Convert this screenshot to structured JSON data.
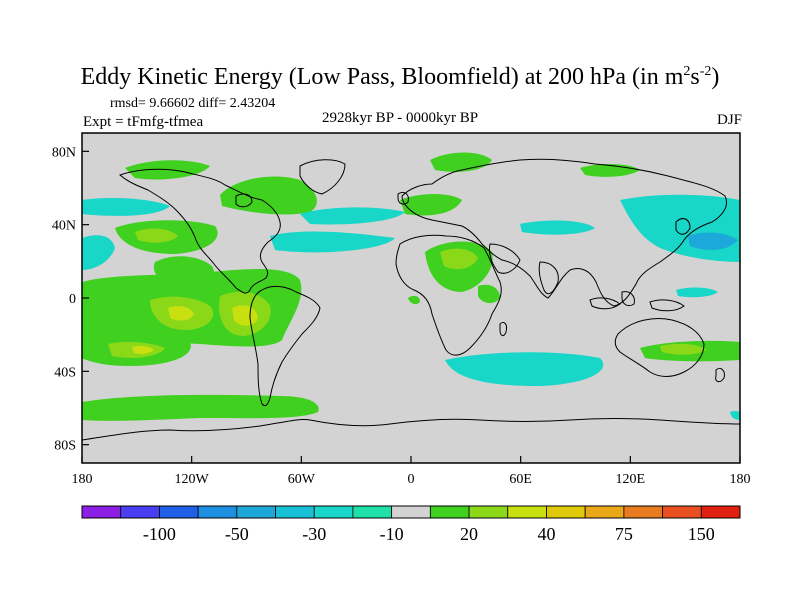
{
  "title": {
    "main": "Eddy Kinetic Energy (Low Pass, Bloomfield) at 200 hPa (in m",
    "sup1": "2",
    "mid": "s",
    "sup2": "-2",
    "close": ")"
  },
  "stats": {
    "rmsd_text": "rmsd= 9.66602 diff= 2.43204"
  },
  "expt_text": "Expt = tFmfg-tfmea",
  "period_text": "2928kyr BP - 0000kyr BP",
  "season_text": "DJF",
  "map": {
    "lat_ticks": [
      "80N",
      "40N",
      "0",
      "40S",
      "80S"
    ],
    "lon_ticks": [
      "180",
      "120W",
      "60W",
      "0",
      "60E",
      "120E",
      "180"
    ],
    "background_color": "#d3d3d3",
    "coastline_color": "#000000"
  },
  "colorbar": {
    "colors": [
      "#8c1fe6",
      "#4a3ff0",
      "#2060e8",
      "#1d8fe0",
      "#1ca8d8",
      "#18c0d6",
      "#18d6c8",
      "#20e0a8",
      "#d3d3d3",
      "#40d020",
      "#8ad818",
      "#c8e010",
      "#e0c80a",
      "#e8a818",
      "#e87a20",
      "#e85020",
      "#e02010"
    ],
    "labels": [
      "-100",
      "-50",
      "-30",
      "-10",
      "20",
      "40",
      "75",
      "150"
    ]
  }
}
